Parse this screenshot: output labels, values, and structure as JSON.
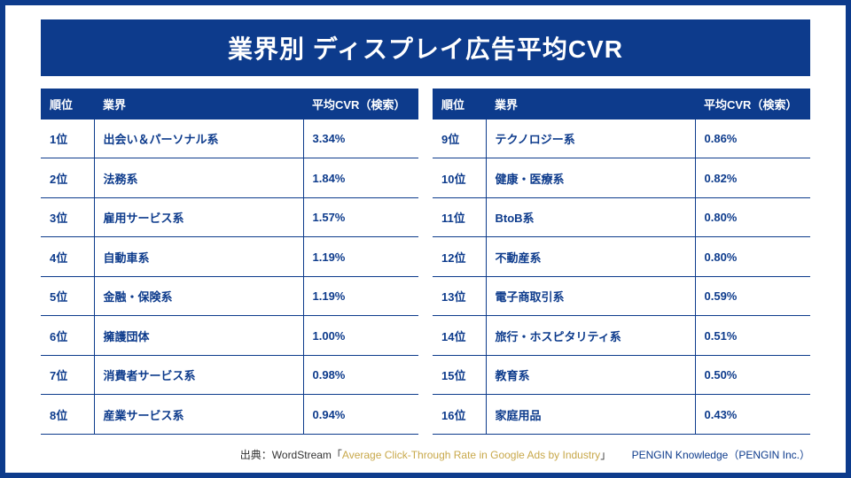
{
  "colors": {
    "brand_blue": "#0d3b8c",
    "link_gold": "#c8a84a",
    "text_dark": "#333333",
    "bg": "#ffffff"
  },
  "title": "業界別 ディスプレイ広告平均CVR",
  "columns": {
    "rank": "順位",
    "industry": "業界",
    "cvr": "平均CVR（検索）"
  },
  "left_rows": [
    {
      "rank": "1位",
      "industry": "出会い＆パーソナル系",
      "cvr": "3.34%"
    },
    {
      "rank": "2位",
      "industry": "法務系",
      "cvr": "1.84%"
    },
    {
      "rank": "3位",
      "industry": "雇用サービス系",
      "cvr": "1.57%"
    },
    {
      "rank": "4位",
      "industry": "自動車系",
      "cvr": "1.19%"
    },
    {
      "rank": "5位",
      "industry": "金融・保険系",
      "cvr": "1.19%"
    },
    {
      "rank": "6位",
      "industry": "擁護団体",
      "cvr": "1.00%"
    },
    {
      "rank": "7位",
      "industry": "消費者サービス系",
      "cvr": "0.98%"
    },
    {
      "rank": "8位",
      "industry": "産業サービス系",
      "cvr": "0.94%"
    }
  ],
  "right_rows": [
    {
      "rank": "9位",
      "industry": "テクノロジー系",
      "cvr": "0.86%"
    },
    {
      "rank": "10位",
      "industry": "健康・医療系",
      "cvr": "0.82%"
    },
    {
      "rank": "11位",
      "industry": "BtoB系",
      "cvr": "0.80%"
    },
    {
      "rank": "12位",
      "industry": "不動産系",
      "cvr": "0.80%"
    },
    {
      "rank": "13位",
      "industry": "電子商取引系",
      "cvr": "0.59%"
    },
    {
      "rank": "14位",
      "industry": "旅行・ホスピタリティ系",
      "cvr": "0.51%"
    },
    {
      "rank": "15位",
      "industry": "教育系",
      "cvr": "0.50%"
    },
    {
      "rank": "16位",
      "industry": "家庭用品",
      "cvr": "0.43%"
    }
  ],
  "source": {
    "prefix": "出典：WordStream「",
    "link_text": "Average Click-Through Rate in Google Ads by Industry",
    "suffix": "」"
  },
  "brand": "PENGIN Knowledge（PENGIN Inc.）"
}
